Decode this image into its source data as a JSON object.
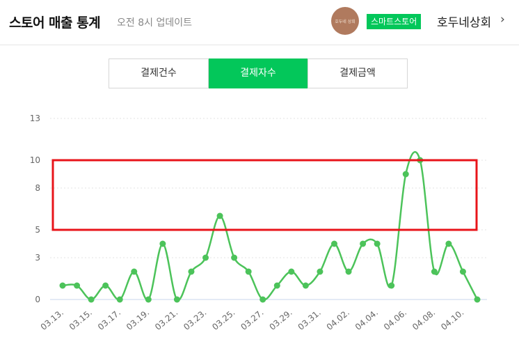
{
  "header": {
    "title": "스토어 매출 통계",
    "subtitle": "오전 8시 업데이트",
    "avatar_text": "호두네 상회",
    "store_badge": "스마트스토어",
    "store_name": "호두네상회",
    "chevron": "›"
  },
  "tabs": [
    {
      "label": "결제건수",
      "active": false
    },
    {
      "label": "결제자수",
      "active": true
    },
    {
      "label": "결제금액",
      "active": false
    }
  ],
  "colors": {
    "accent": "#03c75a",
    "line": "#4cc35a",
    "highlight_box": "#e8141a"
  },
  "chart_data": {
    "type": "line",
    "y_ticks": [
      "0",
      "3",
      "5",
      "8",
      "10",
      "13"
    ],
    "ylim": [
      0,
      13
    ],
    "x_tick_labels": [
      "03.13.",
      "03.15.",
      "03.17.",
      "03.19.",
      "03.21.",
      "03.23.",
      "03.25.",
      "03.27.",
      "03.29.",
      "03.31.",
      "04.02.",
      "04.04.",
      "04.06.",
      "04.08.",
      "04.10."
    ],
    "x": [
      "03.13.",
      "03.14.",
      "03.15.",
      "03.16.",
      "03.17.",
      "03.18.",
      "03.19.",
      "03.20.",
      "03.21.",
      "03.22.",
      "03.23.",
      "03.24.",
      "03.25.",
      "03.26.",
      "03.27.",
      "03.28.",
      "03.29.",
      "03.30.",
      "03.31.",
      "04.01.",
      "04.02.",
      "04.03.",
      "04.04.",
      "04.05.",
      "04.06.",
      "04.07.",
      "04.08.",
      "04.09.",
      "04.10.",
      "04.11."
    ],
    "series": [
      {
        "values": [
          1,
          1,
          0,
          1,
          0,
          2,
          0,
          4,
          0,
          2,
          3,
          6,
          3,
          2,
          0,
          1,
          2,
          1,
          2,
          4,
          2,
          4,
          4,
          1,
          9,
          10,
          2,
          4,
          2,
          0
        ]
      }
    ],
    "highlight_range": [
      5,
      10
    ],
    "grid": "horizontal dotted"
  }
}
